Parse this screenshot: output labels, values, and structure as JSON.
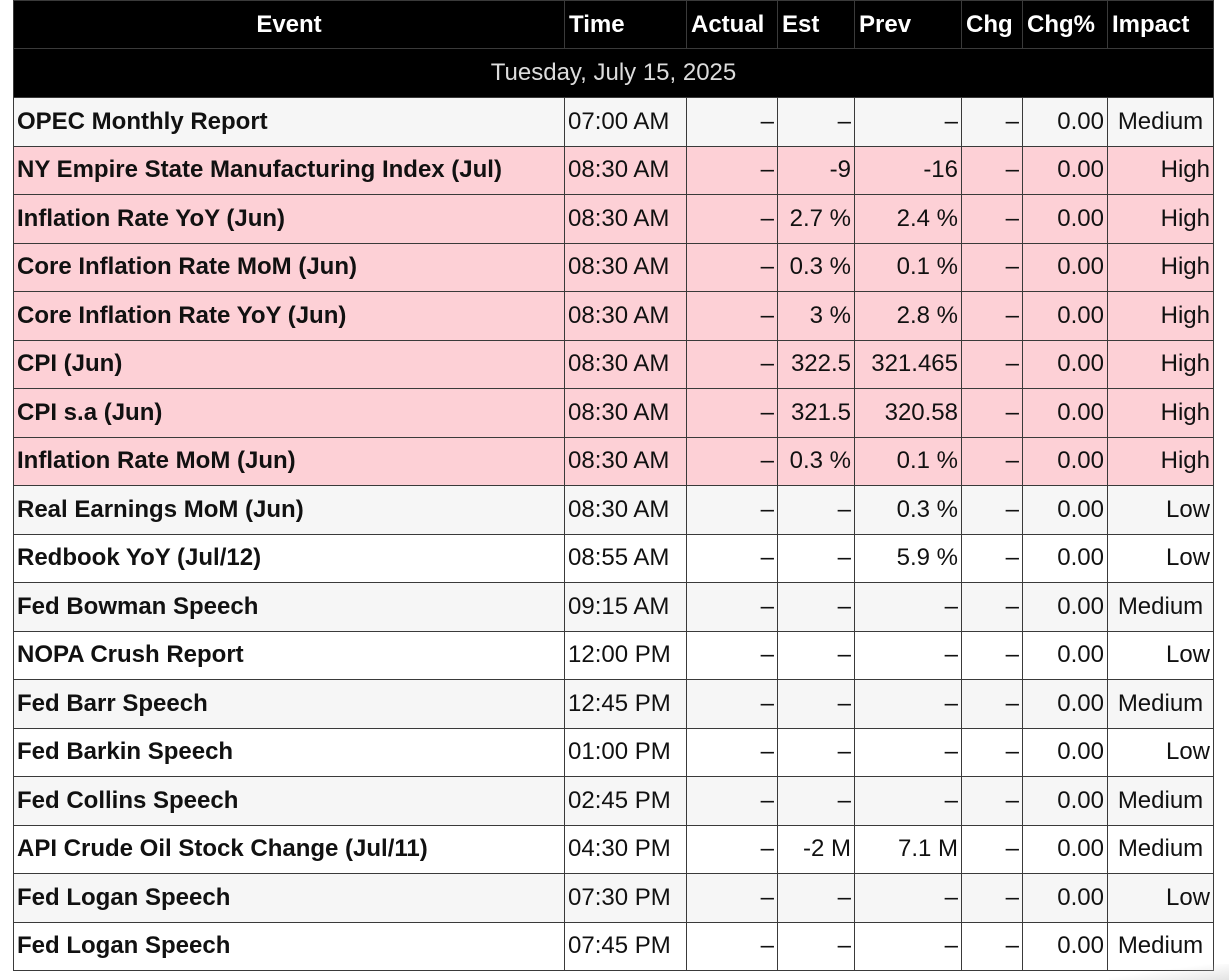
{
  "columns": [
    "Event",
    "Time",
    "Actual",
    "Est",
    "Prev",
    "Chg",
    "Chg%",
    "Impact"
  ],
  "date_label": "Tuesday, July 15, 2025",
  "colors": {
    "header_bg": "#000000",
    "high_impact_row": "#fdd0d6",
    "alt_row": "#f6f6f6"
  },
  "rows": [
    {
      "event": "OPEC Monthly Report",
      "time": "07:00 AM",
      "actual": "–",
      "est": "–",
      "prev": "–",
      "chg": "–",
      "chg_pct": "0.00",
      "impact": "Medium"
    },
    {
      "event": "NY Empire State Manufacturing Index (Jul)",
      "time": "08:30 AM",
      "actual": "–",
      "est": "-9",
      "prev": "-16",
      "chg": "–",
      "chg_pct": "0.00",
      "impact": "High"
    },
    {
      "event": "Inflation Rate YoY (Jun)",
      "time": "08:30 AM",
      "actual": "–",
      "est": "2.7 %",
      "prev": "2.4 %",
      "chg": "–",
      "chg_pct": "0.00",
      "impact": "High"
    },
    {
      "event": "Core Inflation Rate MoM (Jun)",
      "time": "08:30 AM",
      "actual": "–",
      "est": "0.3 %",
      "prev": "0.1 %",
      "chg": "–",
      "chg_pct": "0.00",
      "impact": "High"
    },
    {
      "event": "Core Inflation Rate YoY (Jun)",
      "time": "08:30 AM",
      "actual": "–",
      "est": "3 %",
      "prev": "2.8 %",
      "chg": "–",
      "chg_pct": "0.00",
      "impact": "High"
    },
    {
      "event": "CPI (Jun)",
      "time": "08:30 AM",
      "actual": "–",
      "est": "322.5",
      "prev": "321.465",
      "chg": "–",
      "chg_pct": "0.00",
      "impact": "High"
    },
    {
      "event": "CPI s.a (Jun)",
      "time": "08:30 AM",
      "actual": "–",
      "est": "321.5",
      "prev": "320.58",
      "chg": "–",
      "chg_pct": "0.00",
      "impact": "High"
    },
    {
      "event": "Inflation Rate MoM (Jun)",
      "time": "08:30 AM",
      "actual": "–",
      "est": "0.3 %",
      "prev": "0.1 %",
      "chg": "–",
      "chg_pct": "0.00",
      "impact": "High"
    },
    {
      "event": "Real Earnings MoM (Jun)",
      "time": "08:30 AM",
      "actual": "–",
      "est": "–",
      "prev": "0.3 %",
      "chg": "–",
      "chg_pct": "0.00",
      "impact": "Low"
    },
    {
      "event": "Redbook YoY (Jul/12)",
      "time": "08:55 AM",
      "actual": "–",
      "est": "–",
      "prev": "5.9 %",
      "chg": "–",
      "chg_pct": "0.00",
      "impact": "Low"
    },
    {
      "event": "Fed Bowman Speech",
      "time": "09:15 AM",
      "actual": "–",
      "est": "–",
      "prev": "–",
      "chg": "–",
      "chg_pct": "0.00",
      "impact": "Medium"
    },
    {
      "event": "NOPA Crush Report",
      "time": "12:00 PM",
      "actual": "–",
      "est": "–",
      "prev": "–",
      "chg": "–",
      "chg_pct": "0.00",
      "impact": "Low"
    },
    {
      "event": "Fed Barr Speech",
      "time": "12:45 PM",
      "actual": "–",
      "est": "–",
      "prev": "–",
      "chg": "–",
      "chg_pct": "0.00",
      "impact": "Medium"
    },
    {
      "event": "Fed Barkin Speech",
      "time": "01:00 PM",
      "actual": "–",
      "est": "–",
      "prev": "–",
      "chg": "–",
      "chg_pct": "0.00",
      "impact": "Low"
    },
    {
      "event": "Fed Collins Speech",
      "time": "02:45 PM",
      "actual": "–",
      "est": "–",
      "prev": "–",
      "chg": "–",
      "chg_pct": "0.00",
      "impact": "Medium"
    },
    {
      "event": "API Crude Oil Stock Change (Jul/11)",
      "time": "04:30 PM",
      "actual": "–",
      "est": "-2 M",
      "prev": "7.1 M",
      "chg": "–",
      "chg_pct": "0.00",
      "impact": "Medium"
    },
    {
      "event": "Fed Logan Speech",
      "time": "07:30 PM",
      "actual": "–",
      "est": "–",
      "prev": "–",
      "chg": "–",
      "chg_pct": "0.00",
      "impact": "Low"
    },
    {
      "event": "Fed Logan Speech",
      "time": "07:45 PM",
      "actual": "–",
      "est": "–",
      "prev": "–",
      "chg": "–",
      "chg_pct": "0.00",
      "impact": "Medium"
    }
  ]
}
